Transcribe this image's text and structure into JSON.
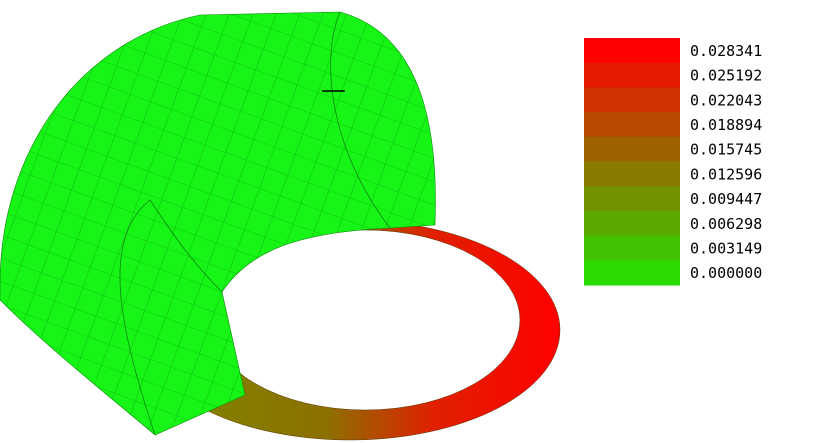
{
  "legend": {
    "labels": [
      "0.028341",
      "0.025192",
      "0.022043",
      "0.018894",
      "0.015745",
      "0.012596",
      "0.009447",
      "0.006298",
      "0.003149",
      "0.000000"
    ],
    "colors": [
      "#fe0000",
      "#e61a00",
      "#d03200",
      "#b84a00",
      "#a06200",
      "#8a7a00",
      "#729200",
      "#5aaa00",
      "#42c200",
      "#2ada00"
    ]
  }
}
